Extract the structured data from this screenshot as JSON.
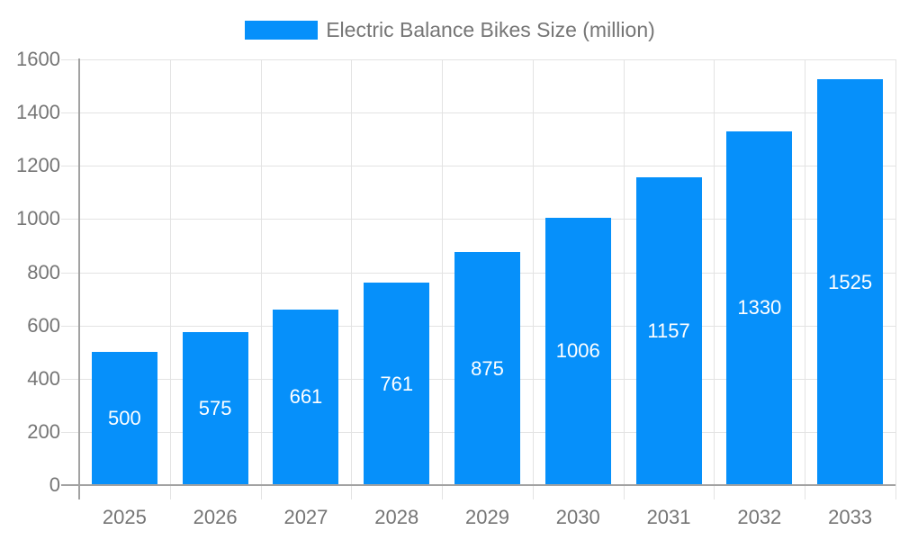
{
  "chart_data": {
    "type": "bar",
    "title": "Electric Balance Bikes Size (million)",
    "legend": {
      "label": "Electric Balance Bikes Size (million)",
      "position": "top"
    },
    "categories": [
      "2025",
      "2026",
      "2027",
      "2028",
      "2029",
      "2030",
      "2031",
      "2032",
      "2033"
    ],
    "series": [
      {
        "name": "Electric Balance Bikes Size (million)",
        "values": [
          500,
          575,
          661,
          761,
          875,
          1006,
          1157,
          1330,
          1525
        ]
      }
    ],
    "xlabel": "",
    "ylabel": "",
    "ylim": [
      0,
      1600
    ],
    "ytick_step": 200,
    "yticks": [
      0,
      200,
      400,
      600,
      800,
      1000,
      1200,
      1400,
      1600
    ],
    "grid": true,
    "bar_labels_shown": true,
    "colors": {
      "bar": "#0690fa",
      "bar_label_text": "#ffffff",
      "axis_text": "#757575",
      "gridline": "#e3e3e3",
      "axis_line": "#a2a2a2"
    }
  }
}
